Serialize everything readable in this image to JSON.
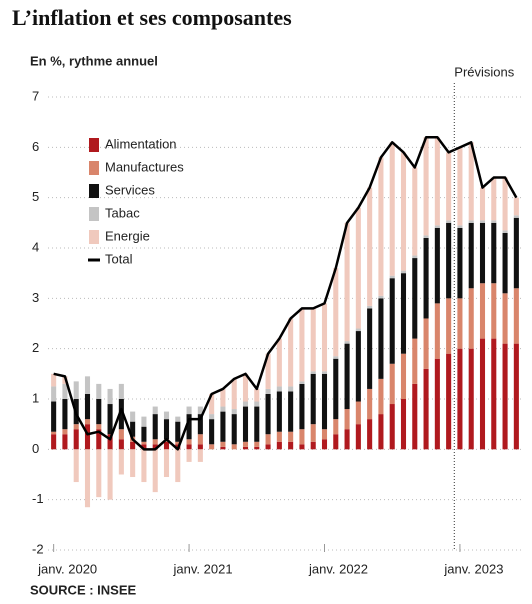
{
  "chart_data": {
    "type": "bar",
    "stacked": true,
    "title": "L’inflation et ses composantes",
    "subtitle": "En %, rythme annuel",
    "source": "SOURCE : INSEE",
    "categories": [
      "janv. 2020",
      null,
      null,
      null,
      null,
      null,
      null,
      null,
      null,
      null,
      null,
      null,
      "janv. 2021",
      null,
      null,
      null,
      null,
      null,
      null,
      null,
      null,
      null,
      null,
      null,
      "janv. 2022",
      null,
      null,
      null,
      null,
      null,
      null,
      null,
      null,
      null,
      null,
      null,
      "janv. 2023",
      null,
      null,
      null,
      null,
      null
    ],
    "series": [
      {
        "name": "Alimentation",
        "color": "#b0191e",
        "values": [
          0.3,
          0.3,
          0.4,
          0.5,
          0.4,
          0.3,
          0.2,
          0.15,
          0.1,
          0.1,
          0.15,
          0.1,
          0.1,
          0.1,
          0.0,
          0.05,
          0.0,
          0.05,
          0.05,
          0.1,
          0.15,
          0.15,
          0.1,
          0.15,
          0.2,
          0.3,
          0.4,
          0.5,
          0.6,
          0.7,
          0.9,
          1.0,
          1.3,
          1.6,
          1.8,
          1.9,
          2.0,
          2.0,
          2.2,
          2.2,
          2.1,
          2.1
        ]
      },
      {
        "name": "Manufactures",
        "color": "#d9856b",
        "values": [
          0.05,
          0.1,
          0.1,
          0.1,
          0.1,
          0.0,
          0.2,
          0.1,
          0.05,
          0.1,
          0.05,
          0.05,
          0.1,
          0.2,
          0.1,
          0.1,
          0.1,
          0.1,
          0.1,
          0.2,
          0.2,
          0.2,
          0.3,
          0.35,
          0.2,
          0.3,
          0.4,
          0.45,
          0.6,
          0.7,
          0.8,
          0.9,
          0.9,
          1.0,
          1.1,
          1.1,
          1.0,
          1.2,
          1.1,
          1.1,
          1.0,
          1.1
        ]
      },
      {
        "name": "Services",
        "color": "#111111",
        "values": [
          0.6,
          0.6,
          0.5,
          0.5,
          0.5,
          0.6,
          0.6,
          0.3,
          0.3,
          0.5,
          0.4,
          0.4,
          0.5,
          0.4,
          0.5,
          0.6,
          0.6,
          0.7,
          0.7,
          0.8,
          0.8,
          0.8,
          0.9,
          1.0,
          1.1,
          1.2,
          1.3,
          1.4,
          1.6,
          1.6,
          1.7,
          1.6,
          1.6,
          1.6,
          1.5,
          1.5,
          1.4,
          1.3,
          1.2,
          1.2,
          1.2,
          1.4
        ]
      },
      {
        "name": "Tabac",
        "color": "#c4c4c4",
        "values": [
          0.3,
          0.3,
          0.35,
          0.35,
          0.3,
          0.3,
          0.3,
          0.2,
          0.2,
          0.15,
          0.15,
          0.1,
          0.15,
          0.15,
          0.1,
          0.1,
          0.1,
          0.1,
          0.1,
          0.1,
          0.1,
          0.1,
          0.05,
          0.05,
          0.05,
          0.05,
          0.05,
          0.05,
          0.05,
          0.05,
          0.05,
          0.05,
          0.05,
          0.05,
          0.05,
          0.05,
          0.05,
          0.05,
          0.05,
          0.05,
          0.05,
          0.05
        ]
      },
      {
        "name": "Energie",
        "color": "#f0c9bd",
        "values": [
          0.25,
          0.15,
          -0.65,
          -1.15,
          -0.95,
          -1.0,
          -0.5,
          -0.55,
          -0.65,
          -0.85,
          -0.55,
          -0.65,
          -0.25,
          -0.25,
          0.4,
          0.35,
          0.6,
          0.55,
          0.25,
          0.7,
          0.95,
          1.35,
          1.45,
          1.25,
          1.35,
          1.75,
          2.35,
          2.4,
          2.35,
          2.75,
          2.65,
          2.35,
          1.75,
          1.95,
          1.75,
          1.35,
          1.55,
          1.55,
          0.65,
          0.85,
          1.05,
          0.35
        ]
      },
      {
        "name": "Total",
        "color": "#000000",
        "type": "line",
        "values": [
          1.5,
          1.45,
          0.7,
          0.3,
          0.35,
          0.2,
          0.8,
          0.2,
          0.0,
          0.0,
          0.2,
          0.0,
          0.6,
          0.6,
          1.1,
          1.2,
          1.4,
          1.5,
          1.2,
          1.9,
          2.2,
          2.6,
          2.8,
          2.8,
          2.9,
          3.6,
          4.5,
          4.8,
          5.2,
          5.8,
          6.1,
          5.9,
          5.6,
          6.2,
          6.2,
          5.9,
          6.0,
          6.1,
          5.2,
          5.4,
          5.4,
          5.0
        ]
      }
    ],
    "ylim": [
      -2,
      7
    ],
    "yticks": [
      -2,
      -1,
      0,
      1,
      2,
      3,
      4,
      5,
      6,
      7
    ],
    "grid": true,
    "legend": "upper left",
    "annotations": [
      {
        "text": "Prévisions",
        "x_index": 36
      }
    ]
  }
}
